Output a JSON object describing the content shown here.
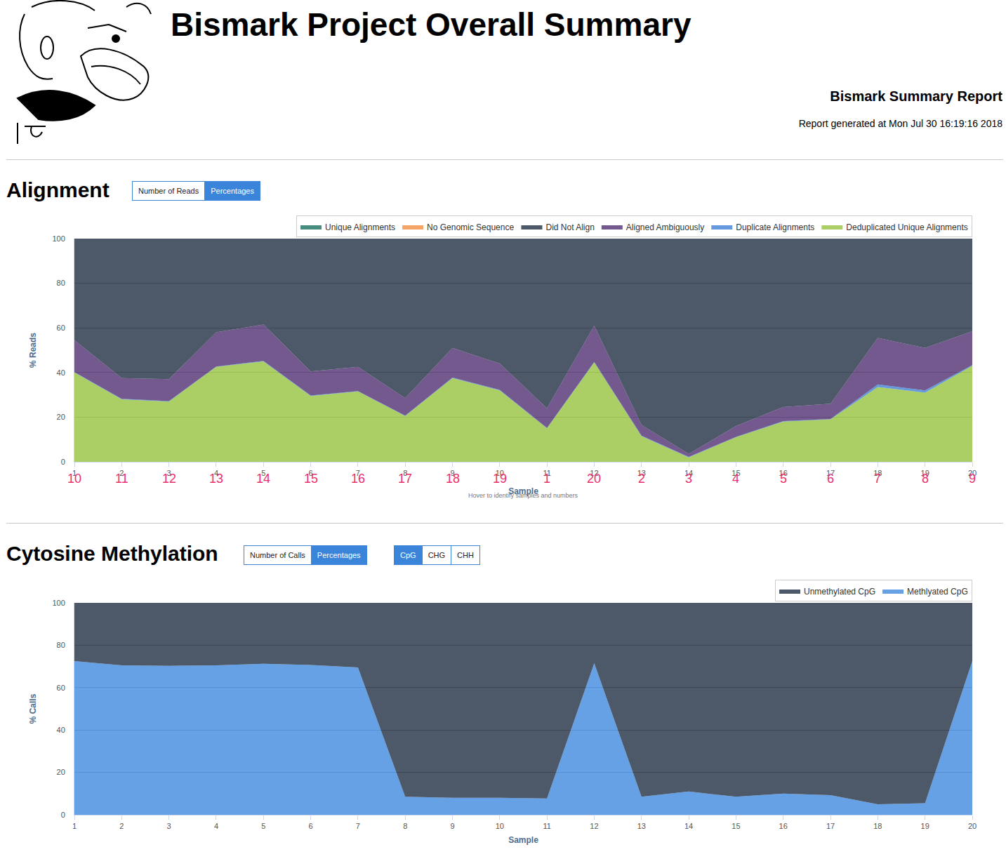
{
  "page": {
    "title": "Bismark Project Overall Summary",
    "subtitle": "Bismark Summary Report",
    "generated": "Report generated at Mon Jul 30 16:19:16 2018"
  },
  "chart_data": [
    {
      "type": "area",
      "title": "Alignment",
      "button_groups": [
        [
          {
            "label": "Number of Reads",
            "color": "#ffffff"
          },
          {
            "label": "Percentages",
            "color": "#3a84d9"
          }
        ]
      ],
      "xlabel": "Sample",
      "note": "Hover to identify samples and numbers",
      "ylabel": "% Reads",
      "x": [
        1,
        2,
        3,
        4,
        5,
        6,
        7,
        8,
        9,
        10,
        11,
        12,
        13,
        14,
        15,
        16,
        17,
        18,
        19,
        20
      ],
      "annotations": [
        "10",
        "11",
        "12",
        "13",
        "14",
        "15",
        "16",
        "17",
        "18",
        "19",
        "1",
        "20",
        "2",
        "3",
        "4",
        "5",
        "6",
        "7",
        "8",
        "9"
      ],
      "xlim": [
        1,
        20
      ],
      "xticks": [
        1,
        2,
        3,
        4,
        5,
        6,
        7,
        8,
        9,
        10,
        11,
        12,
        13,
        14,
        15,
        16,
        17,
        18,
        19,
        20
      ],
      "ylim": [
        0,
        100
      ],
      "yticks": [
        0,
        20,
        40,
        60,
        80,
        100
      ],
      "stacked": true,
      "grid": true,
      "legend": "top right",
      "series": [
        {
          "name": "Deduplicated Unique Alignments",
          "color": "#93c23a",
          "values": [
            40,
            28,
            27,
            42.5,
            45,
            29.5,
            31.5,
            20.5,
            37.5,
            32,
            15,
            44.5,
            11.5,
            2,
            11,
            18,
            19,
            33.5,
            31,
            43
          ]
        },
        {
          "name": "Duplicate Alignments",
          "color": "#3a7fd5",
          "values": [
            0.2,
            0.2,
            0.2,
            0.2,
            0.2,
            0.2,
            0.2,
            0.2,
            0.2,
            0.2,
            0.2,
            0.2,
            0.2,
            0.2,
            0.2,
            0.2,
            0.2,
            1.2,
            1.0,
            0.3
          ]
        },
        {
          "name": "Aligned Ambiguously",
          "color": "#4b2a6e",
          "values": [
            14.3,
            9.3,
            9.8,
            15.3,
            16.3,
            10.8,
            10.8,
            7.8,
            13.3,
            11.8,
            8.8,
            16.3,
            4.8,
            1.3,
            4.8,
            6.3,
            6.8,
            20.8,
            19,
            15.2
          ]
        },
        {
          "name": "Did Not Align",
          "color": "#1b2a3e",
          "values": [
            45.5,
            62.5,
            63,
            42,
            38.5,
            59.5,
            57.5,
            71.5,
            49,
            56,
            76,
            39,
            83.5,
            96.5,
            84,
            75.5,
            74,
            44.5,
            49,
            41.5
          ]
        },
        {
          "name": "No Genomic Sequence",
          "color": "#f28c3c",
          "values": [
            0,
            0,
            0,
            0,
            0,
            0,
            0,
            0,
            0,
            0,
            0,
            0,
            0,
            0,
            0,
            0,
            0,
            0,
            0,
            0
          ]
        },
        {
          "name": "Unique Alignments",
          "color": "#146b5b",
          "values": [
            0,
            0,
            0,
            0,
            0,
            0,
            0,
            0,
            0,
            0,
            0,
            0,
            0,
            0,
            0,
            0,
            0,
            0,
            0,
            0
          ]
        }
      ]
    },
    {
      "type": "area",
      "title": "Cytosine Methylation",
      "button_groups": [
        [
          {
            "label": "Number of Calls",
            "color": "#ffffff"
          },
          {
            "label": "Percentages",
            "color": "#3a84d9"
          }
        ],
        [
          {
            "label": "CpG",
            "color": "#3a84d9"
          },
          {
            "label": "CHG",
            "color": "#ffffff"
          },
          {
            "label": "CHH",
            "color": "#ffffff"
          }
        ]
      ],
      "xlabel": "Sample",
      "ylabel": "% Calls",
      "x": [
        1,
        2,
        3,
        4,
        5,
        6,
        7,
        8,
        9,
        10,
        11,
        12,
        13,
        14,
        15,
        16,
        17,
        18,
        19,
        20
      ],
      "xlim": [
        1,
        20
      ],
      "xticks": [
        1,
        2,
        3,
        4,
        5,
        6,
        7,
        8,
        9,
        10,
        11,
        12,
        13,
        14,
        15,
        16,
        17,
        18,
        19,
        20
      ],
      "ylim": [
        0,
        100
      ],
      "yticks": [
        0,
        20,
        40,
        60,
        80,
        100
      ],
      "stacked": true,
      "grid": true,
      "legend": "top right",
      "series": [
        {
          "name": "Methlyated CpG",
          "color": "#3a87dc",
          "values": [
            72.5,
            70.5,
            70.3,
            70.5,
            71.3,
            70.7,
            69.5,
            8.5,
            8,
            8,
            7.7,
            71.5,
            8.5,
            11,
            8.5,
            10,
            9.3,
            5,
            5.5,
            72.5
          ]
        },
        {
          "name": "Unmethylated CpG",
          "color": "#1b2a3e",
          "values": [
            27.5,
            29.5,
            29.7,
            29.5,
            28.7,
            29.3,
            30.5,
            91.5,
            92,
            92,
            92.3,
            28.5,
            91.5,
            89,
            91.5,
            90,
            90.7,
            95,
            94.5,
            27.5
          ]
        }
      ]
    }
  ]
}
